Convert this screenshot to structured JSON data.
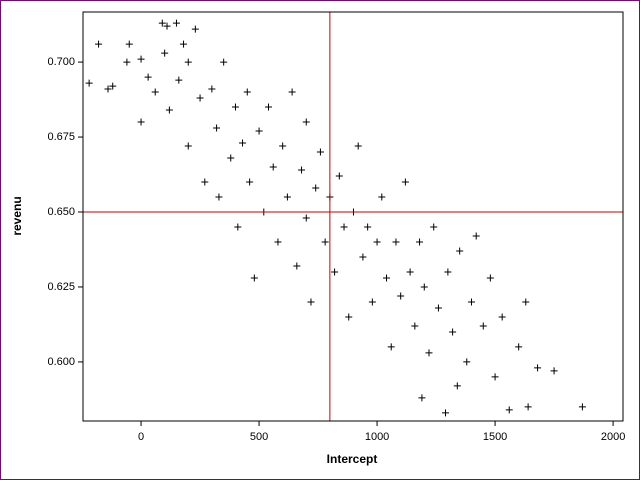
{
  "chart_data": {
    "type": "scatter",
    "x_label": "Intercept",
    "y_label": "revenu",
    "marker": "+",
    "color": "#000000",
    "x": [
      -220,
      -180,
      -140,
      -120,
      -60,
      -50,
      0,
      0,
      30,
      60,
      90,
      110,
      150,
      100,
      120,
      160,
      180,
      200,
      230,
      200,
      250,
      270,
      300,
      320,
      330,
      350,
      380,
      400,
      410,
      430,
      450,
      460,
      480,
      500,
      520,
      540,
      560,
      580,
      600,
      620,
      640,
      660,
      680,
      700,
      700,
      720,
      740,
      760,
      780,
      800,
      820,
      840,
      860,
      880,
      900,
      920,
      940,
      960,
      980,
      1000,
      1020,
      1040,
      1060,
      1080,
      1100,
      1120,
      1140,
      1160,
      1180,
      1200,
      1220,
      1240,
      1260,
      1300,
      1320,
      1350,
      1380,
      1400,
      1420,
      1450,
      1480,
      1500,
      1530,
      1560,
      1600,
      1630,
      1640,
      1680,
      1750,
      1870,
      1290,
      1190,
      1340
    ],
    "y": [
      0.693,
      0.706,
      0.691,
      0.692,
      0.7,
      0.706,
      0.701,
      0.68,
      0.695,
      0.69,
      0.713,
      0.712,
      0.713,
      0.703,
      0.684,
      0.694,
      0.706,
      0.7,
      0.711,
      0.672,
      0.688,
      0.66,
      0.691,
      0.678,
      0.655,
      0.7,
      0.668,
      0.685,
      0.645,
      0.673,
      0.69,
      0.66,
      0.628,
      0.677,
      0.65,
      0.685,
      0.665,
      0.64,
      0.672,
      0.655,
      0.69,
      0.632,
      0.664,
      0.648,
      0.68,
      0.62,
      0.658,
      0.67,
      0.64,
      0.655,
      0.63,
      0.662,
      0.645,
      0.615,
      0.65,
      0.672,
      0.635,
      0.645,
      0.62,
      0.64,
      0.655,
      0.628,
      0.605,
      0.64,
      0.622,
      0.66,
      0.63,
      0.612,
      0.64,
      0.625,
      0.603,
      0.645,
      0.618,
      0.63,
      0.61,
      0.637,
      0.6,
      0.62,
      0.642,
      0.612,
      0.628,
      0.595,
      0.615,
      0.584,
      0.605,
      0.62,
      0.585,
      0.598,
      0.597,
      0.585,
      0.583,
      0.588,
      0.592
    ],
    "xlim": [
      -246,
      2042
    ],
    "ylim": [
      0.5803,
      0.7167
    ],
    "xticks": [
      0,
      500,
      1000,
      1500,
      2000
    ],
    "yticks": [
      {
        "value": 0.6,
        "label": "0.600"
      },
      {
        "value": 0.625,
        "label": "0.625"
      },
      {
        "value": 0.65,
        "label": "0.650"
      },
      {
        "value": 0.675,
        "label": "0.675"
      },
      {
        "value": 0.7,
        "label": "0.700"
      }
    ],
    "reference_lines": {
      "x": 800,
      "y": 0.65,
      "color": "#cc0000"
    }
  }
}
